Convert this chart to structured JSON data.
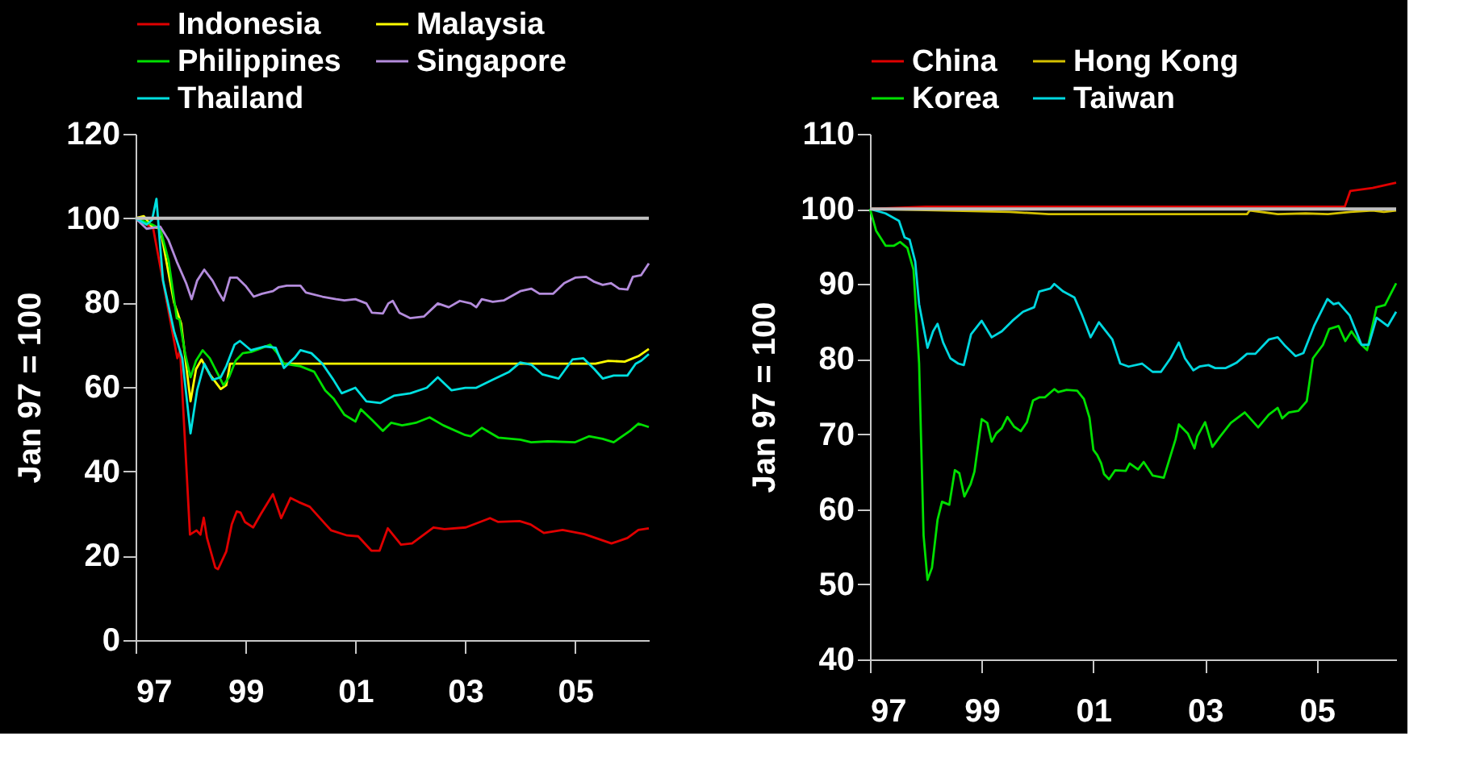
{
  "chart_data": [
    {
      "type": "line",
      "ylabel": "Jan 97 = 100",
      "legend": "top",
      "xlim": [
        1997,
        2006.34
      ],
      "ylim": [
        0,
        120
      ],
      "yticks": [
        0,
        20,
        40,
        60,
        80,
        100,
        120
      ],
      "xticks": [
        {
          "value": 1997,
          "label": "97"
        },
        {
          "value": 1999,
          "label": "99"
        },
        {
          "value": 2001,
          "label": "01"
        },
        {
          "value": 2003,
          "label": "03"
        },
        {
          "value": 2005,
          "label": "05"
        }
      ],
      "ref_lines": [
        {
          "axis": "y",
          "value": 100,
          "label": null,
          "color": "#c0c0c0"
        }
      ],
      "series": [
        {
          "name": "Indonesia",
          "color": "#e00000",
          "x": [
            1997.0,
            1997.32,
            1997.76,
            1997.81,
            1997.99,
            1998.11,
            1998.18,
            1998.24,
            1998.3,
            1998.45,
            1998.5,
            1998.65,
            1998.75,
            1998.84,
            1998.91,
            1998.99,
            1999.14,
            1999.28,
            1999.5,
            1999.65,
            1999.82,
            1999.97,
            2000.17,
            2000.46,
            2000.56,
            2000.85,
            2001.05,
            2001.29,
            2001.44,
            2001.59,
            2001.83,
            2002.03,
            2002.42,
            2002.62,
            2003.01,
            2003.45,
            2003.6,
            2003.99,
            2004.19,
            2004.43,
            2004.77,
            2005.17,
            2005.66,
            2005.95,
            2006.15,
            2006.34
          ],
          "values": [
            100,
            97.6,
            66.8,
            68.7,
            25,
            26,
            25,
            29,
            24.2,
            17.2,
            16.8,
            21,
            27.4,
            30.5,
            30.2,
            28,
            26.7,
            29.9,
            34.6,
            28.9,
            33.7,
            32.7,
            31.6,
            27.4,
            26,
            24.8,
            24.6,
            21.2,
            21.2,
            26.5,
            22.6,
            22.9,
            26.7,
            26.3,
            26.7,
            28.9,
            28,
            28.2,
            27.4,
            25.4,
            26.1,
            25.1,
            22.9,
            24.2,
            26.1,
            26.5
          ]
        },
        {
          "name": "Malaysia",
          "color": "#ffff00",
          "x": [
            1997.0,
            1997.15,
            1997.3,
            1997.45,
            1997.7,
            1997.83,
            1998.0,
            1998.1,
            1998.2,
            1998.35,
            1998.55,
            1998.65,
            1998.72,
            2005.37,
            2005.6,
            2005.9,
            2006.15,
            2006.34
          ],
          "values": [
            100,
            100.5,
            98,
            97.5,
            80,
            75,
            56.6,
            64.2,
            66.5,
            63,
            59.5,
            60.4,
            65.5,
            65.5,
            66.2,
            66,
            67.3,
            69
          ]
        },
        {
          "name": "Philippines",
          "color": "#00e000",
          "x": [
            1997.0,
            1997.3,
            1997.45,
            1997.6,
            1997.75,
            1997.8,
            1997.9,
            1998.0,
            1998.1,
            1998.22,
            1998.35,
            1998.5,
            1998.6,
            1998.7,
            1998.82,
            1998.95,
            1999.1,
            1999.25,
            1999.45,
            1999.58,
            1999.7,
            2000.0,
            2000.25,
            2000.45,
            2000.6,
            2000.8,
            2001.0,
            2001.1,
            2001.3,
            2001.5,
            2001.65,
            2001.85,
            2002.1,
            2002.35,
            2002.6,
            2003.0,
            2003.1,
            2003.3,
            2003.6,
            2004.0,
            2004.2,
            2004.5,
            2005.0,
            2005.25,
            2005.5,
            2005.7,
            2006.0,
            2006.15,
            2006.34
          ],
          "values": [
            100,
            98.5,
            97.5,
            90,
            76.3,
            76,
            68,
            62.3,
            66.2,
            68.7,
            66.8,
            63,
            60.4,
            62.3,
            66.2,
            68,
            68.3,
            69,
            70,
            68,
            65.5,
            64.9,
            63.6,
            59.2,
            57.3,
            53.4,
            51.8,
            54.7,
            52.2,
            49.6,
            51.5,
            50.9,
            51.5,
            52.8,
            50.9,
            48.6,
            48.3,
            50.3,
            48,
            47.5,
            46.9,
            47.1,
            46.9,
            48.3,
            47.7,
            46.9,
            49.6,
            51.3,
            50.5
          ]
        },
        {
          "name": "Singapore",
          "color": "#b48cdc",
          "x": [
            1997.0,
            1997.2,
            1997.45,
            1997.6,
            1997.75,
            1997.92,
            1998.02,
            1998.12,
            1998.25,
            1998.4,
            1998.5,
            1998.6,
            1998.72,
            1998.85,
            1999.0,
            1999.15,
            1999.3,
            1999.5,
            1999.6,
            1999.75,
            2000.0,
            2000.1,
            2000.4,
            2000.65,
            2000.8,
            2001.0,
            2001.2,
            2001.3,
            2001.5,
            2001.6,
            2001.68,
            2001.8,
            2002.0,
            2002.25,
            2002.5,
            2002.7,
            2002.9,
            2003.1,
            2003.2,
            2003.3,
            2003.5,
            2003.7,
            2004.0,
            2004.2,
            2004.35,
            2004.6,
            2004.8,
            2005.0,
            2005.2,
            2005.35,
            2005.5,
            2005.65,
            2005.8,
            2005.95,
            2006.05,
            2006.2,
            2006.34
          ],
          "values": [
            100,
            97.5,
            98,
            94.8,
            89.7,
            84.6,
            80.8,
            85.2,
            87.8,
            85.2,
            82.7,
            80.5,
            85.9,
            85.9,
            84,
            81.4,
            82.1,
            82.7,
            83.6,
            84,
            84,
            82.4,
            81.4,
            80.8,
            80.5,
            80.8,
            79.8,
            77.6,
            77.4,
            79.8,
            80.4,
            77.6,
            76.3,
            76.7,
            79.8,
            78.9,
            80.4,
            79.8,
            78.9,
            80.8,
            80.2,
            80.5,
            82.7,
            83.3,
            82.1,
            82.1,
            84.6,
            85.9,
            86.1,
            84.9,
            84.2,
            84.6,
            83.3,
            83.1,
            86.1,
            86.5,
            89.3
          ]
        },
        {
          "name": "Thailand",
          "color": "#00e0e0",
          "x": [
            1997.0,
            1997.2,
            1997.3,
            1997.38,
            1997.45,
            1997.5,
            1997.7,
            1997.85,
            1998.0,
            1998.12,
            1998.25,
            1998.4,
            1998.55,
            1998.65,
            1998.8,
            1998.9,
            1999.1,
            1999.35,
            1999.55,
            1999.7,
            1999.9,
            2000.0,
            2000.2,
            2000.4,
            2000.6,
            2000.75,
            2001.0,
            2001.2,
            2001.45,
            2001.7,
            2002.0,
            2002.3,
            2002.5,
            2002.75,
            2003.0,
            2003.2,
            2003.5,
            2003.8,
            2004.0,
            2004.2,
            2004.4,
            2004.7,
            2004.95,
            2005.15,
            2005.35,
            2005.5,
            2005.7,
            2005.95,
            2006.1,
            2006.2,
            2006.34
          ],
          "values": [
            100,
            98.5,
            99.6,
            104.6,
            92.9,
            85.2,
            73.2,
            66.8,
            49,
            59.2,
            65.5,
            61.7,
            62.3,
            64.9,
            70,
            70.9,
            68.7,
            69.6,
            69.3,
            64.5,
            67,
            68.7,
            68,
            65.5,
            61.7,
            58.5,
            59.8,
            56.6,
            56.2,
            57.9,
            58.5,
            59.8,
            62.3,
            59.2,
            59.8,
            59.8,
            61.7,
            63.6,
            65.8,
            65.3,
            63,
            62,
            66.5,
            66.8,
            64.2,
            62,
            62.7,
            62.7,
            65.5,
            66.2,
            67.8
          ]
        }
      ]
    },
    {
      "type": "line",
      "ylabel": "Jan 97 = 100",
      "legend": "top",
      "xlim": [
        1997,
        2006.42
      ],
      "ylim": [
        40,
        110
      ],
      "yticks": [
        40,
        50,
        60,
        70,
        80,
        90,
        100,
        110
      ],
      "xticks": [
        {
          "value": 1997,
          "label": "97"
        },
        {
          "value": 1999,
          "label": "99"
        },
        {
          "value": 2001,
          "label": "01"
        },
        {
          "value": 2003,
          "label": "03"
        },
        {
          "value": 2005,
          "label": "05"
        }
      ],
      "ref_lines": [
        {
          "axis": "y",
          "value": 100,
          "label": null,
          "color": "#c0c0c0"
        }
      ],
      "series": [
        {
          "name": "China",
          "color": "#e00000",
          "x": [
            1997.0,
            1998.0,
            2005.5,
            2005.6,
            2006.0,
            2006.42
          ],
          "values": [
            100,
            100.3,
            100.3,
            102.4,
            102.8,
            103.5
          ]
        },
        {
          "name": "Hong Kong",
          "color": "#d4c000",
          "x": [
            1997.0,
            1999.5,
            2000.2,
            2003.75,
            2003.8,
            2004.3,
            2004.8,
            2005.2,
            2005.6,
            2006.0,
            2006.2,
            2006.42
          ],
          "values": [
            100,
            99.6,
            99.3,
            99.3,
            99.8,
            99.3,
            99.4,
            99.3,
            99.6,
            99.8,
            99.6,
            99.8
          ]
        },
        {
          "name": "Korea",
          "color": "#00e000",
          "x": [
            1997.0,
            1997.11,
            1997.28,
            1997.43,
            1997.54,
            1997.67,
            1997.78,
            1997.88,
            1997.96,
            1998.03,
            1998.11,
            1998.21,
            1998.29,
            1998.42,
            1998.52,
            1998.6,
            1998.69,
            1998.8,
            1998.87,
            1999.0,
            1999.1,
            1999.18,
            1999.26,
            1999.36,
            1999.46,
            1999.58,
            1999.7,
            1999.81,
            1999.92,
            2000.03,
            2000.13,
            2000.3,
            2000.37,
            2000.52,
            2000.71,
            2000.83,
            2000.93,
            2001.0,
            2001.07,
            2001.14,
            2001.19,
            2001.28,
            2001.39,
            2001.58,
            2001.65,
            2001.8,
            2001.9,
            2002.06,
            2002.26,
            2002.47,
            2002.53,
            2002.69,
            2002.81,
            2002.86,
            2003.0,
            2003.13,
            2003.27,
            2003.46,
            2003.71,
            2003.95,
            2004.14,
            2004.3,
            2004.38,
            2004.5,
            2004.67,
            2004.82,
            2004.93,
            2005.11,
            2005.22,
            2005.39,
            2005.51,
            2005.62,
            2005.76,
            2005.9,
            2006.07,
            2006.22,
            2006.42
          ],
          "values": [
            100,
            97.1,
            95.1,
            95.1,
            95.6,
            94.8,
            91.9,
            79.4,
            56.5,
            50.6,
            52.2,
            58.6,
            61,
            60.6,
            65.2,
            64.8,
            61.7,
            63.3,
            65,
            72,
            71.5,
            69,
            70.1,
            70.8,
            72.3,
            71,
            70.4,
            71.6,
            74.5,
            74.9,
            74.9,
            76,
            75.6,
            75.9,
            75.8,
            74.7,
            72.2,
            67.9,
            67.2,
            66.1,
            64.7,
            64,
            65.2,
            65.1,
            66.1,
            65.3,
            66.3,
            64.5,
            64.2,
            69.3,
            71.3,
            70.1,
            68.1,
            69.7,
            71.6,
            68.3,
            69.7,
            71.5,
            72.9,
            70.9,
            72.6,
            73.5,
            72.1,
            72.9,
            73.1,
            74.4,
            80.1,
            81.9,
            84,
            84.4,
            82.4,
            83.7,
            82.2,
            81.2,
            86.9,
            87.2,
            90.1
          ]
        },
        {
          "name": "Taiwan",
          "color": "#00d8e0",
          "x": [
            1997.0,
            1997.28,
            1997.52,
            1997.62,
            1997.71,
            1997.81,
            1997.88,
            1998.03,
            1998.13,
            1998.21,
            1998.31,
            1998.44,
            1998.58,
            1998.68,
            1998.81,
            1999.0,
            1999.18,
            1999.36,
            1999.55,
            1999.74,
            1999.94,
            2000.03,
            2000.23,
            2000.3,
            2000.46,
            2000.66,
            2000.8,
            2000.95,
            2001.1,
            2001.34,
            2001.48,
            2001.63,
            2001.87,
            2002.06,
            2002.21,
            2002.38,
            2002.53,
            2002.64,
            2002.79,
            2002.9,
            2003.06,
            2003.18,
            2003.37,
            2003.56,
            2003.75,
            2003.9,
            2004.14,
            2004.3,
            2004.44,
            2004.62,
            2004.76,
            2004.95,
            2005.19,
            2005.3,
            2005.39,
            2005.59,
            2005.8,
            2005.93,
            2006.07,
            2006.27,
            2006.42
          ],
          "values": [
            100,
            99.4,
            98.4,
            96.2,
            95.9,
            93,
            87.3,
            81.5,
            83.7,
            84.7,
            82.2,
            80.1,
            79.4,
            79.2,
            83.3,
            85.1,
            82.9,
            83.7,
            85.1,
            86.3,
            86.9,
            89,
            89.4,
            90,
            89,
            88.2,
            85.8,
            82.9,
            84.9,
            82.6,
            79.4,
            79,
            79.4,
            78.3,
            78.3,
            80.1,
            82.2,
            80.1,
            78.5,
            79,
            79.2,
            78.8,
            78.8,
            79.5,
            80.7,
            80.7,
            82.6,
            82.9,
            81.7,
            80.4,
            80.8,
            84.4,
            88,
            87.3,
            87.5,
            85.8,
            81.9,
            81.9,
            85.5,
            84.4,
            86.3
          ]
        }
      ]
    }
  ]
}
